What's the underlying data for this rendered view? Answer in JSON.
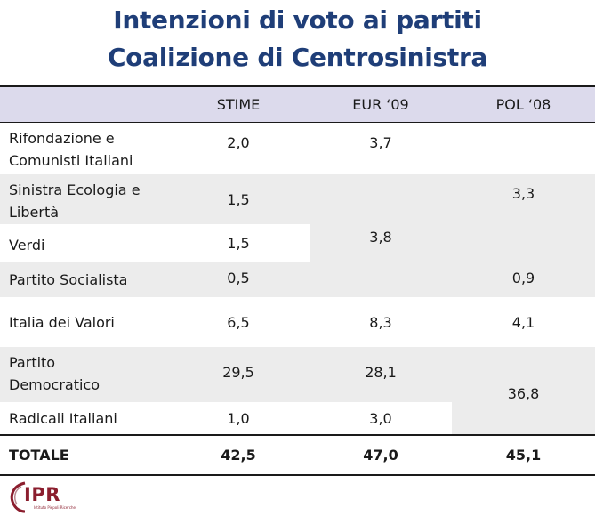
{
  "title": {
    "line1": "Intenzioni di voto ai partiti",
    "line2": "Coalizione di Centrosinistra"
  },
  "table": {
    "headers": {
      "stime": "STIME",
      "eur": "EUR ‘09",
      "pol": "POL ‘08"
    },
    "rows": [
      {
        "party": "Rifondazione e\nComunisti Italiani",
        "stime": "2,0"
      },
      {
        "party": "Sinistra Ecologia e\nLibertà",
        "stime": "1,5"
      },
      {
        "party": "Verdi",
        "stime": "1,5"
      },
      {
        "party": "Partito Socialista",
        "stime": "0,5"
      },
      {
        "party": "Italia dei Valori",
        "stime": "6,5"
      },
      {
        "party": "Partito\nDemocratico",
        "stime": "29,5"
      },
      {
        "party": "Radicali Italiani",
        "stime": "1,0"
      }
    ],
    "eur_values": {
      "rifondazione": "3,7",
      "sinistra_verdi": "3,8",
      "italia_valori": "8,3",
      "pd": "28,1",
      "radicali": "3,0"
    },
    "pol_values": {
      "left_group": "3,3",
      "socialista": "0,9",
      "italia_valori": "4,1",
      "pd_radicali": "36,8"
    },
    "total": {
      "label": "TOTALE",
      "stime": "42,5",
      "eur": "47,0",
      "pol": "45,1"
    }
  },
  "logo": {
    "text": "IPR",
    "subtitle": "Istituto Piepoli Ricerche"
  },
  "colors": {
    "title": "#1f3e78",
    "header_bg": "#dcdaec",
    "stripe_bg": "#ececec",
    "logo": "#8b1e2e"
  }
}
